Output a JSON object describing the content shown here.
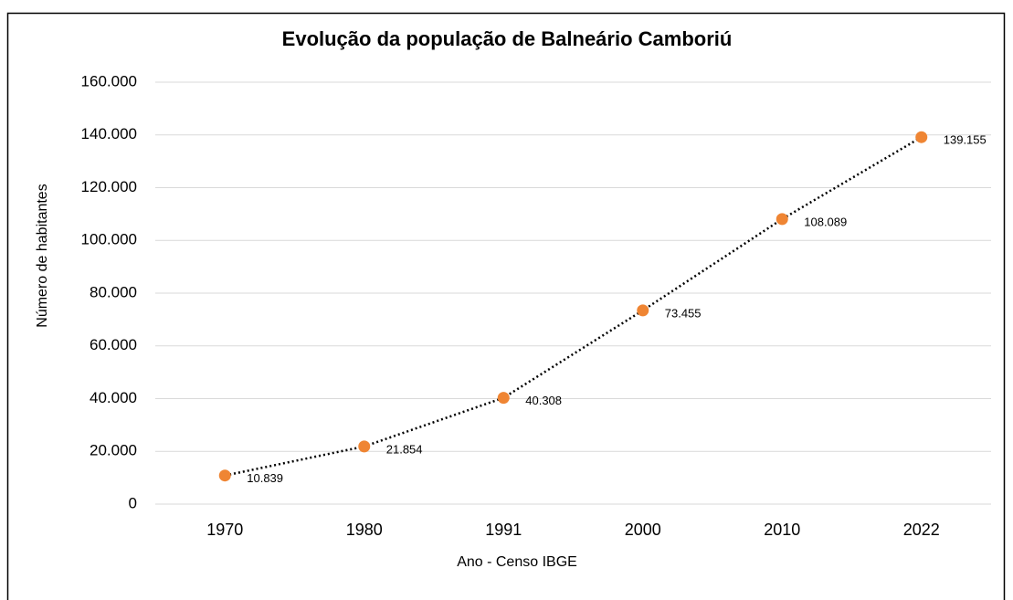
{
  "chart_data": {
    "type": "line",
    "title": "Evolução da população de Balneário Camboriú",
    "x_label": "Ano - Censo IBGE",
    "y_label": "Número de habitantes",
    "categories": [
      "1970",
      "1980",
      "1991",
      "2000",
      "2010",
      "2022"
    ],
    "values": [
      10839,
      21854,
      40308,
      73455,
      108089,
      139155
    ],
    "value_labels": [
      "10.839",
      "21.854",
      "40.308",
      "73.455",
      "108.089",
      "139.155"
    ],
    "marker_color": "#ef8533",
    "line_color": "#000000",
    "line_style": "dotted",
    "ylim": [
      0,
      160000
    ],
    "yticks": [
      0,
      {
        "value": 20000,
        "label": "20.000"
      },
      {
        "value": 40000,
        "label": "40.000"
      },
      {
        "value": 60000,
        "label": "60.000"
      },
      {
        "value": 80000,
        "label": "80.000"
      },
      {
        "value": 100000,
        "label": "100.000"
      },
      {
        "value": 120000,
        "label": "120.000"
      },
      {
        "value": 140000,
        "label": "140.000"
      },
      {
        "value": 160000,
        "label": "160.000"
      }
    ],
    "grid": true
  }
}
